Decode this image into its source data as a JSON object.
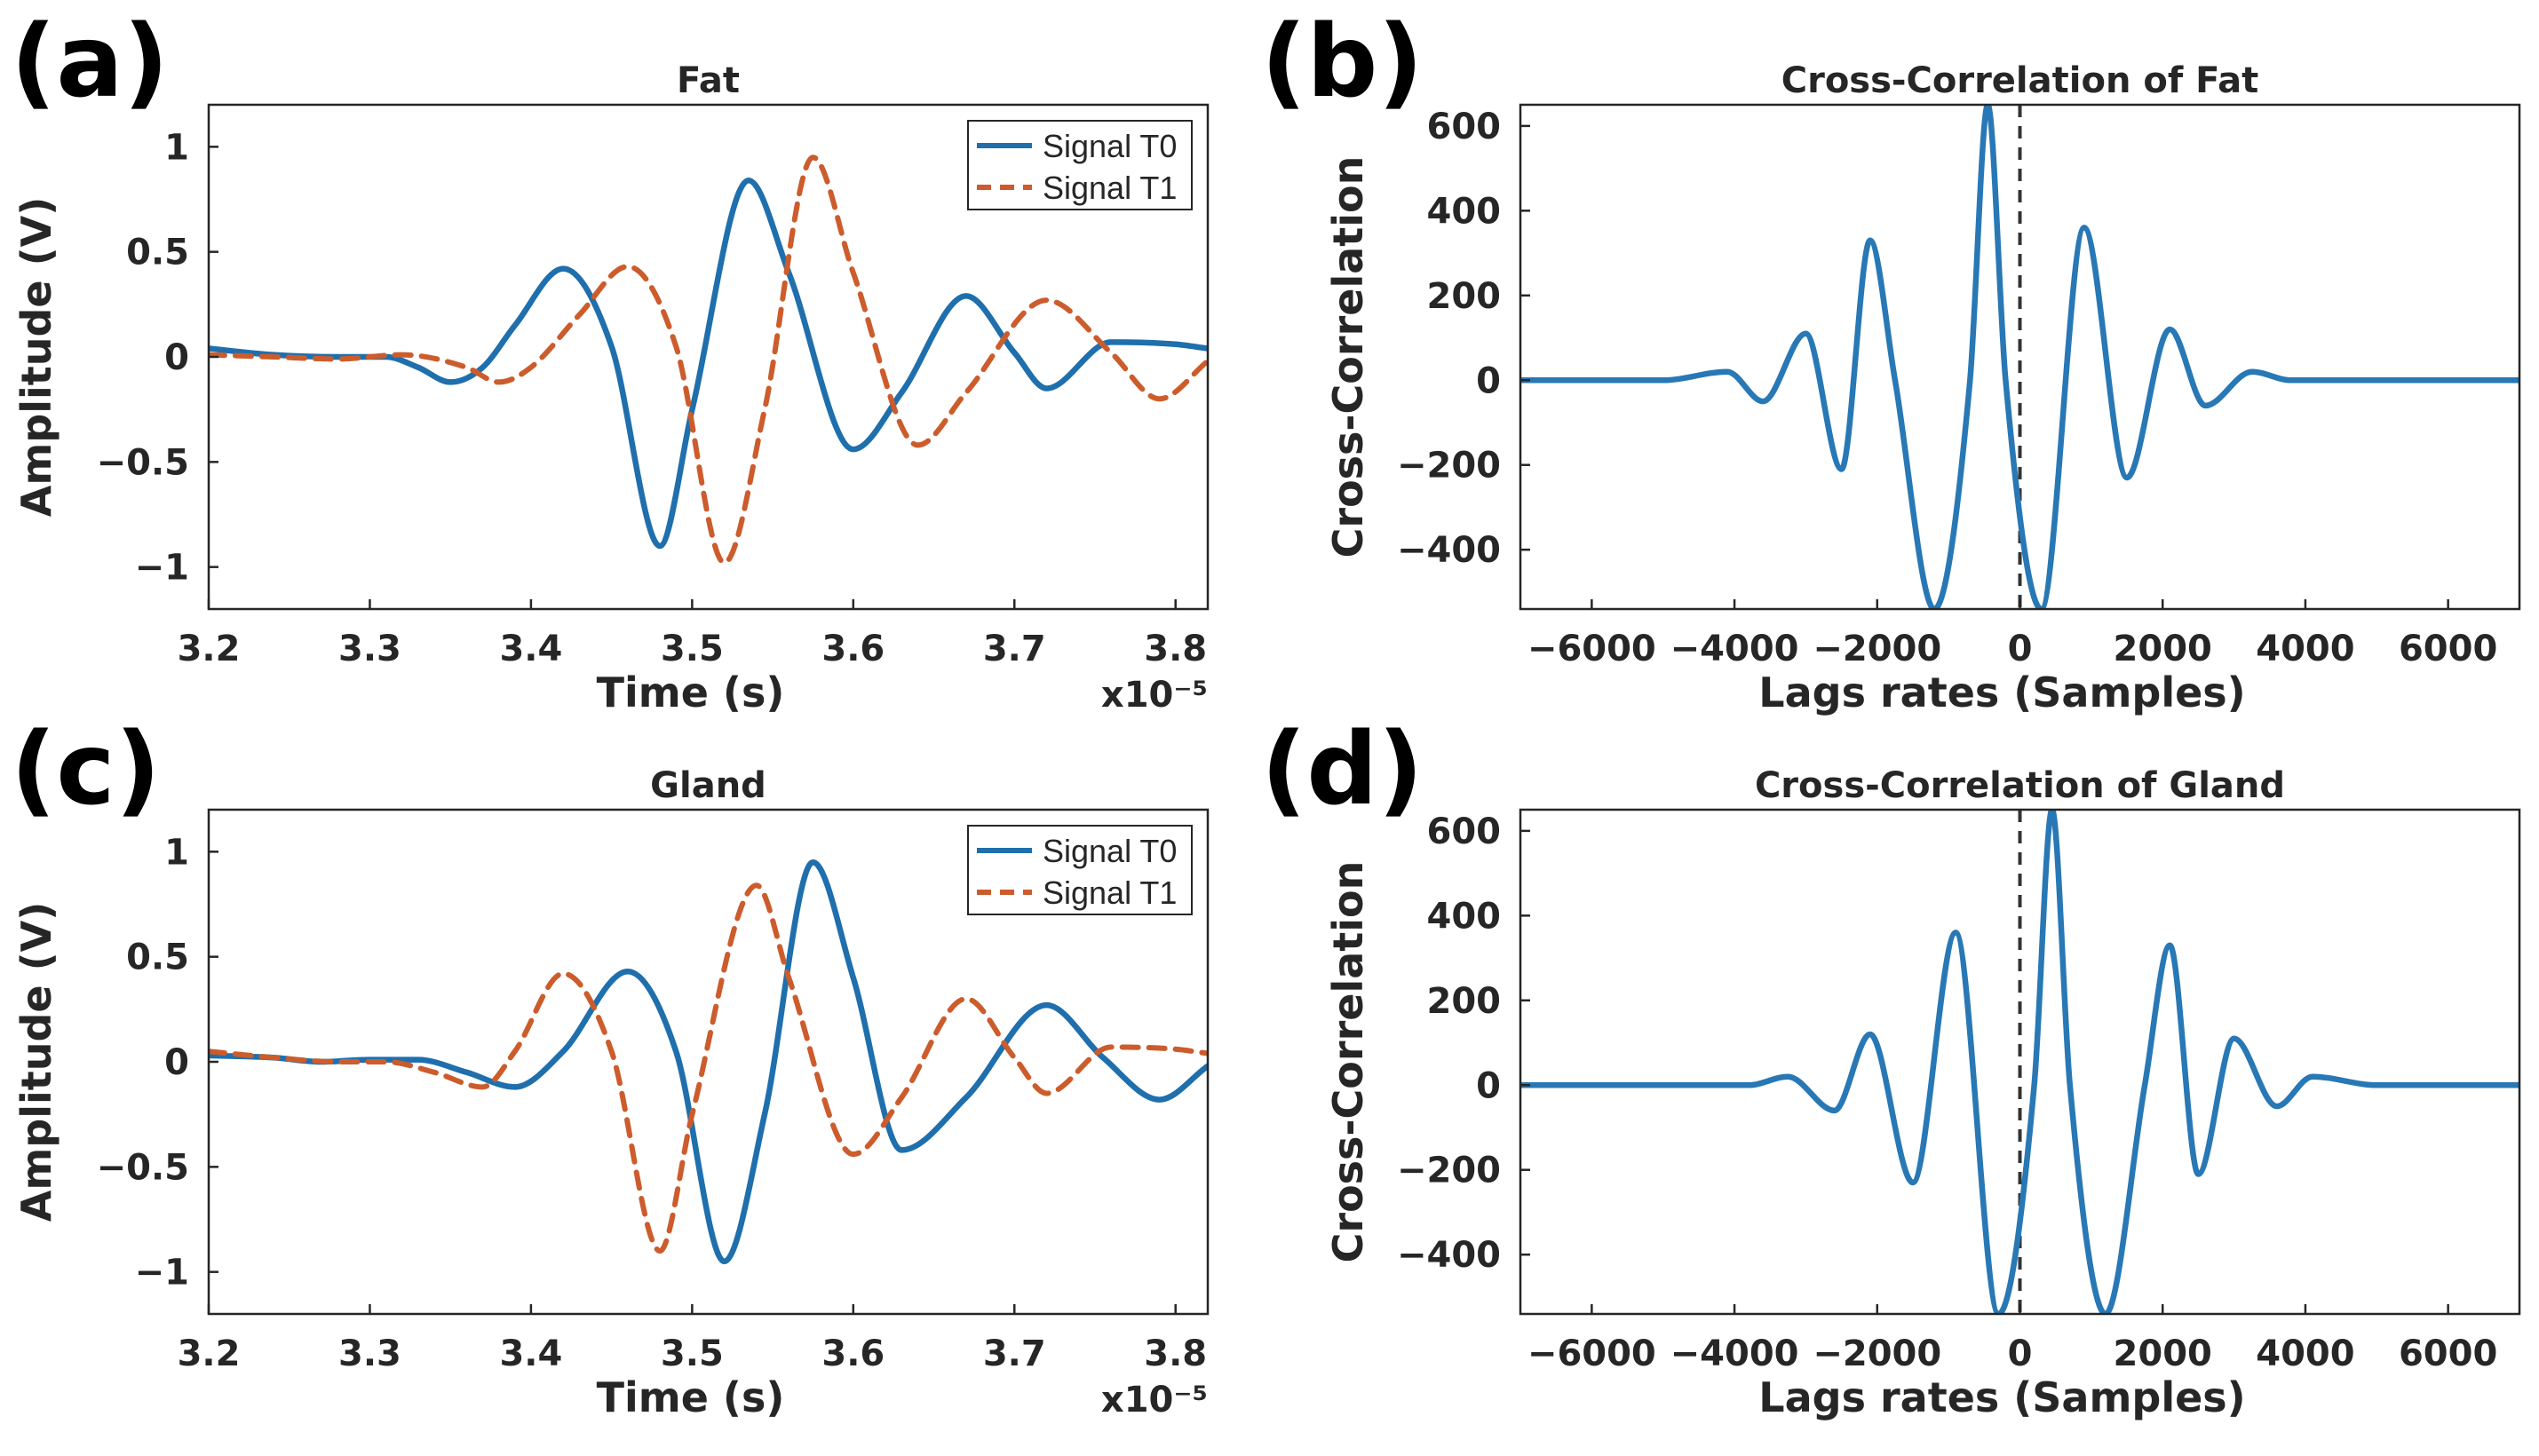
{
  "chart_data": [
    {
      "id": "a",
      "panel_label": "(a)",
      "type": "line",
      "title": "Fat",
      "xlabel": "Time (s)",
      "ylabel": "Amplitude (V)",
      "x_exponent_label": "x10⁻⁵",
      "xlim": [
        3.2,
        3.82
      ],
      "ylim": [
        -1.2,
        1.2
      ],
      "xticks": [
        3.2,
        3.3,
        3.4,
        3.5,
        3.6,
        3.7,
        3.8
      ],
      "xtick_labels": [
        "3.2",
        "3.3",
        "3.4",
        "3.5",
        "3.6",
        "3.7",
        "3.8"
      ],
      "yticks": [
        -1,
        -0.5,
        0,
        0.5,
        1
      ],
      "ytick_labels": [
        "−1",
        "−0.5",
        "0",
        "0.5",
        "1"
      ],
      "legend": "top-right",
      "series": [
        {
          "name": "Signal T0",
          "style": "solid",
          "color": "#1f6fad",
          "x": [
            3.2,
            3.24,
            3.28,
            3.31,
            3.33,
            3.35,
            3.37,
            3.39,
            3.42,
            3.45,
            3.48,
            3.5,
            3.535,
            3.56,
            3.6,
            3.63,
            3.67,
            3.7,
            3.72,
            3.76,
            3.8,
            3.82
          ],
          "y": [
            0.04,
            0.01,
            0.0,
            0.0,
            -0.05,
            -0.12,
            -0.05,
            0.15,
            0.42,
            0.05,
            -0.9,
            -0.25,
            0.84,
            0.4,
            -0.44,
            -0.17,
            0.29,
            0.02,
            -0.15,
            0.07,
            0.06,
            0.04
          ]
        },
        {
          "name": "Signal T1",
          "style": "dashed",
          "color": "#cc5c2c",
          "x": [
            3.2,
            3.24,
            3.28,
            3.32,
            3.36,
            3.38,
            3.4,
            3.43,
            3.46,
            3.49,
            3.52,
            3.545,
            3.575,
            3.6,
            3.64,
            3.67,
            3.72,
            3.76,
            3.79,
            3.82
          ],
          "y": [
            0.01,
            0.0,
            -0.01,
            0.01,
            -0.05,
            -0.12,
            -0.05,
            0.2,
            0.43,
            0.05,
            -0.98,
            -0.25,
            0.95,
            0.4,
            -0.42,
            -0.17,
            0.27,
            0.02,
            -0.2,
            -0.02
          ]
        }
      ]
    },
    {
      "id": "b",
      "panel_label": "(b)",
      "type": "line",
      "title": "Cross-Correlation of Fat",
      "xlabel": "Lags rates (Samples)",
      "ylabel": "Cross-Correlation",
      "xlim": [
        -7000,
        7000
      ],
      "ylim": [
        -540,
        650
      ],
      "xticks": [
        -6000,
        -4000,
        -2000,
        0,
        2000,
        4000,
        6000
      ],
      "xtick_labels": [
        "−6000",
        "−4000",
        "−2000",
        "0",
        "2000",
        "4000",
        "6000"
      ],
      "yticks": [
        -400,
        -200,
        0,
        200,
        400,
        600
      ],
      "ytick_labels": [
        "−400",
        "−200",
        "0",
        "200",
        "400",
        "600"
      ],
      "reference_line_x": 0,
      "series": [
        {
          "name": "Cross-Correlation",
          "style": "solid",
          "color": "#2878b5",
          "x": [
            -7000,
            -5000,
            -4100,
            -3600,
            -3000,
            -2500,
            -2100,
            -1750,
            -1200,
            -700,
            -450,
            -200,
            300,
            900,
            1500,
            2100,
            2600,
            3250,
            3800,
            4500,
            7000
          ],
          "y": [
            0,
            0,
            20,
            -50,
            110,
            -210,
            330,
            0,
            -540,
            0,
            650,
            0,
            -540,
            360,
            -230,
            120,
            -60,
            20,
            0,
            0,
            0
          ]
        }
      ]
    },
    {
      "id": "c",
      "panel_label": "(c)",
      "type": "line",
      "title": "Gland",
      "xlabel": "Time (s)",
      "ylabel": "Amplitude (V)",
      "x_exponent_label": "x10⁻⁵",
      "xlim": [
        3.2,
        3.82
      ],
      "ylim": [
        -1.2,
        1.2
      ],
      "xticks": [
        3.2,
        3.3,
        3.4,
        3.5,
        3.6,
        3.7,
        3.8
      ],
      "xtick_labels": [
        "3.2",
        "3.3",
        "3.4",
        "3.5",
        "3.6",
        "3.7",
        "3.8"
      ],
      "yticks": [
        -1,
        -0.5,
        0,
        0.5,
        1
      ],
      "ytick_labels": [
        "−1",
        "−0.5",
        "0",
        "0.5",
        "1"
      ],
      "legend": "top-right",
      "series": [
        {
          "name": "Signal T0",
          "style": "solid",
          "color": "#1f6fad",
          "x": [
            3.2,
            3.24,
            3.27,
            3.3,
            3.33,
            3.36,
            3.39,
            3.42,
            3.46,
            3.49,
            3.52,
            3.545,
            3.575,
            3.6,
            3.63,
            3.67,
            3.72,
            3.755,
            3.79,
            3.82
          ],
          "y": [
            0.03,
            0.02,
            0.0,
            0.01,
            0.01,
            -0.05,
            -0.12,
            0.05,
            0.43,
            0.05,
            -0.95,
            -0.25,
            0.95,
            0.4,
            -0.42,
            -0.17,
            0.27,
            0.02,
            -0.18,
            -0.02
          ]
        },
        {
          "name": "Signal T1",
          "style": "dashed",
          "color": "#cc5c2c",
          "x": [
            3.2,
            3.24,
            3.28,
            3.31,
            3.34,
            3.37,
            3.39,
            3.42,
            3.45,
            3.48,
            3.5,
            3.54,
            3.56,
            3.6,
            3.63,
            3.67,
            3.7,
            3.72,
            3.76,
            3.8,
            3.82
          ],
          "y": [
            0.05,
            0.02,
            0.0,
            0.0,
            -0.05,
            -0.12,
            0.05,
            0.42,
            0.05,
            -0.9,
            -0.25,
            0.84,
            0.4,
            -0.44,
            -0.17,
            0.3,
            0.02,
            -0.15,
            0.07,
            0.06,
            0.04
          ]
        }
      ]
    },
    {
      "id": "d",
      "panel_label": "(d)",
      "type": "line",
      "title": "Cross-Correlation of Gland",
      "xlabel": "Lags rates (Samples)",
      "ylabel": "Cross-Correlation",
      "xlim": [
        -7000,
        7000
      ],
      "ylim": [
        -540,
        650
      ],
      "xticks": [
        -6000,
        -4000,
        -2000,
        0,
        2000,
        4000,
        6000
      ],
      "xtick_labels": [
        "−6000",
        "−4000",
        "−2000",
        "0",
        "2000",
        "4000",
        "6000"
      ],
      "yticks": [
        -400,
        -200,
        0,
        200,
        400,
        600
      ],
      "ytick_labels": [
        "−400",
        "−200",
        "0",
        "200",
        "400",
        "600"
      ],
      "reference_line_x": 0,
      "series": [
        {
          "name": "Cross-Correlation",
          "style": "solid",
          "color": "#2878b5",
          "x": [
            -7000,
            -4500,
            -3800,
            -3250,
            -2600,
            -2100,
            -1500,
            -900,
            -300,
            200,
            450,
            700,
            1200,
            1750,
            2100,
            2500,
            3000,
            3600,
            4100,
            5000,
            7000
          ],
          "y": [
            0,
            0,
            0,
            20,
            -60,
            120,
            -230,
            360,
            -540,
            0,
            650,
            0,
            -540,
            0,
            330,
            -210,
            110,
            -50,
            20,
            0,
            0
          ]
        }
      ]
    }
  ]
}
